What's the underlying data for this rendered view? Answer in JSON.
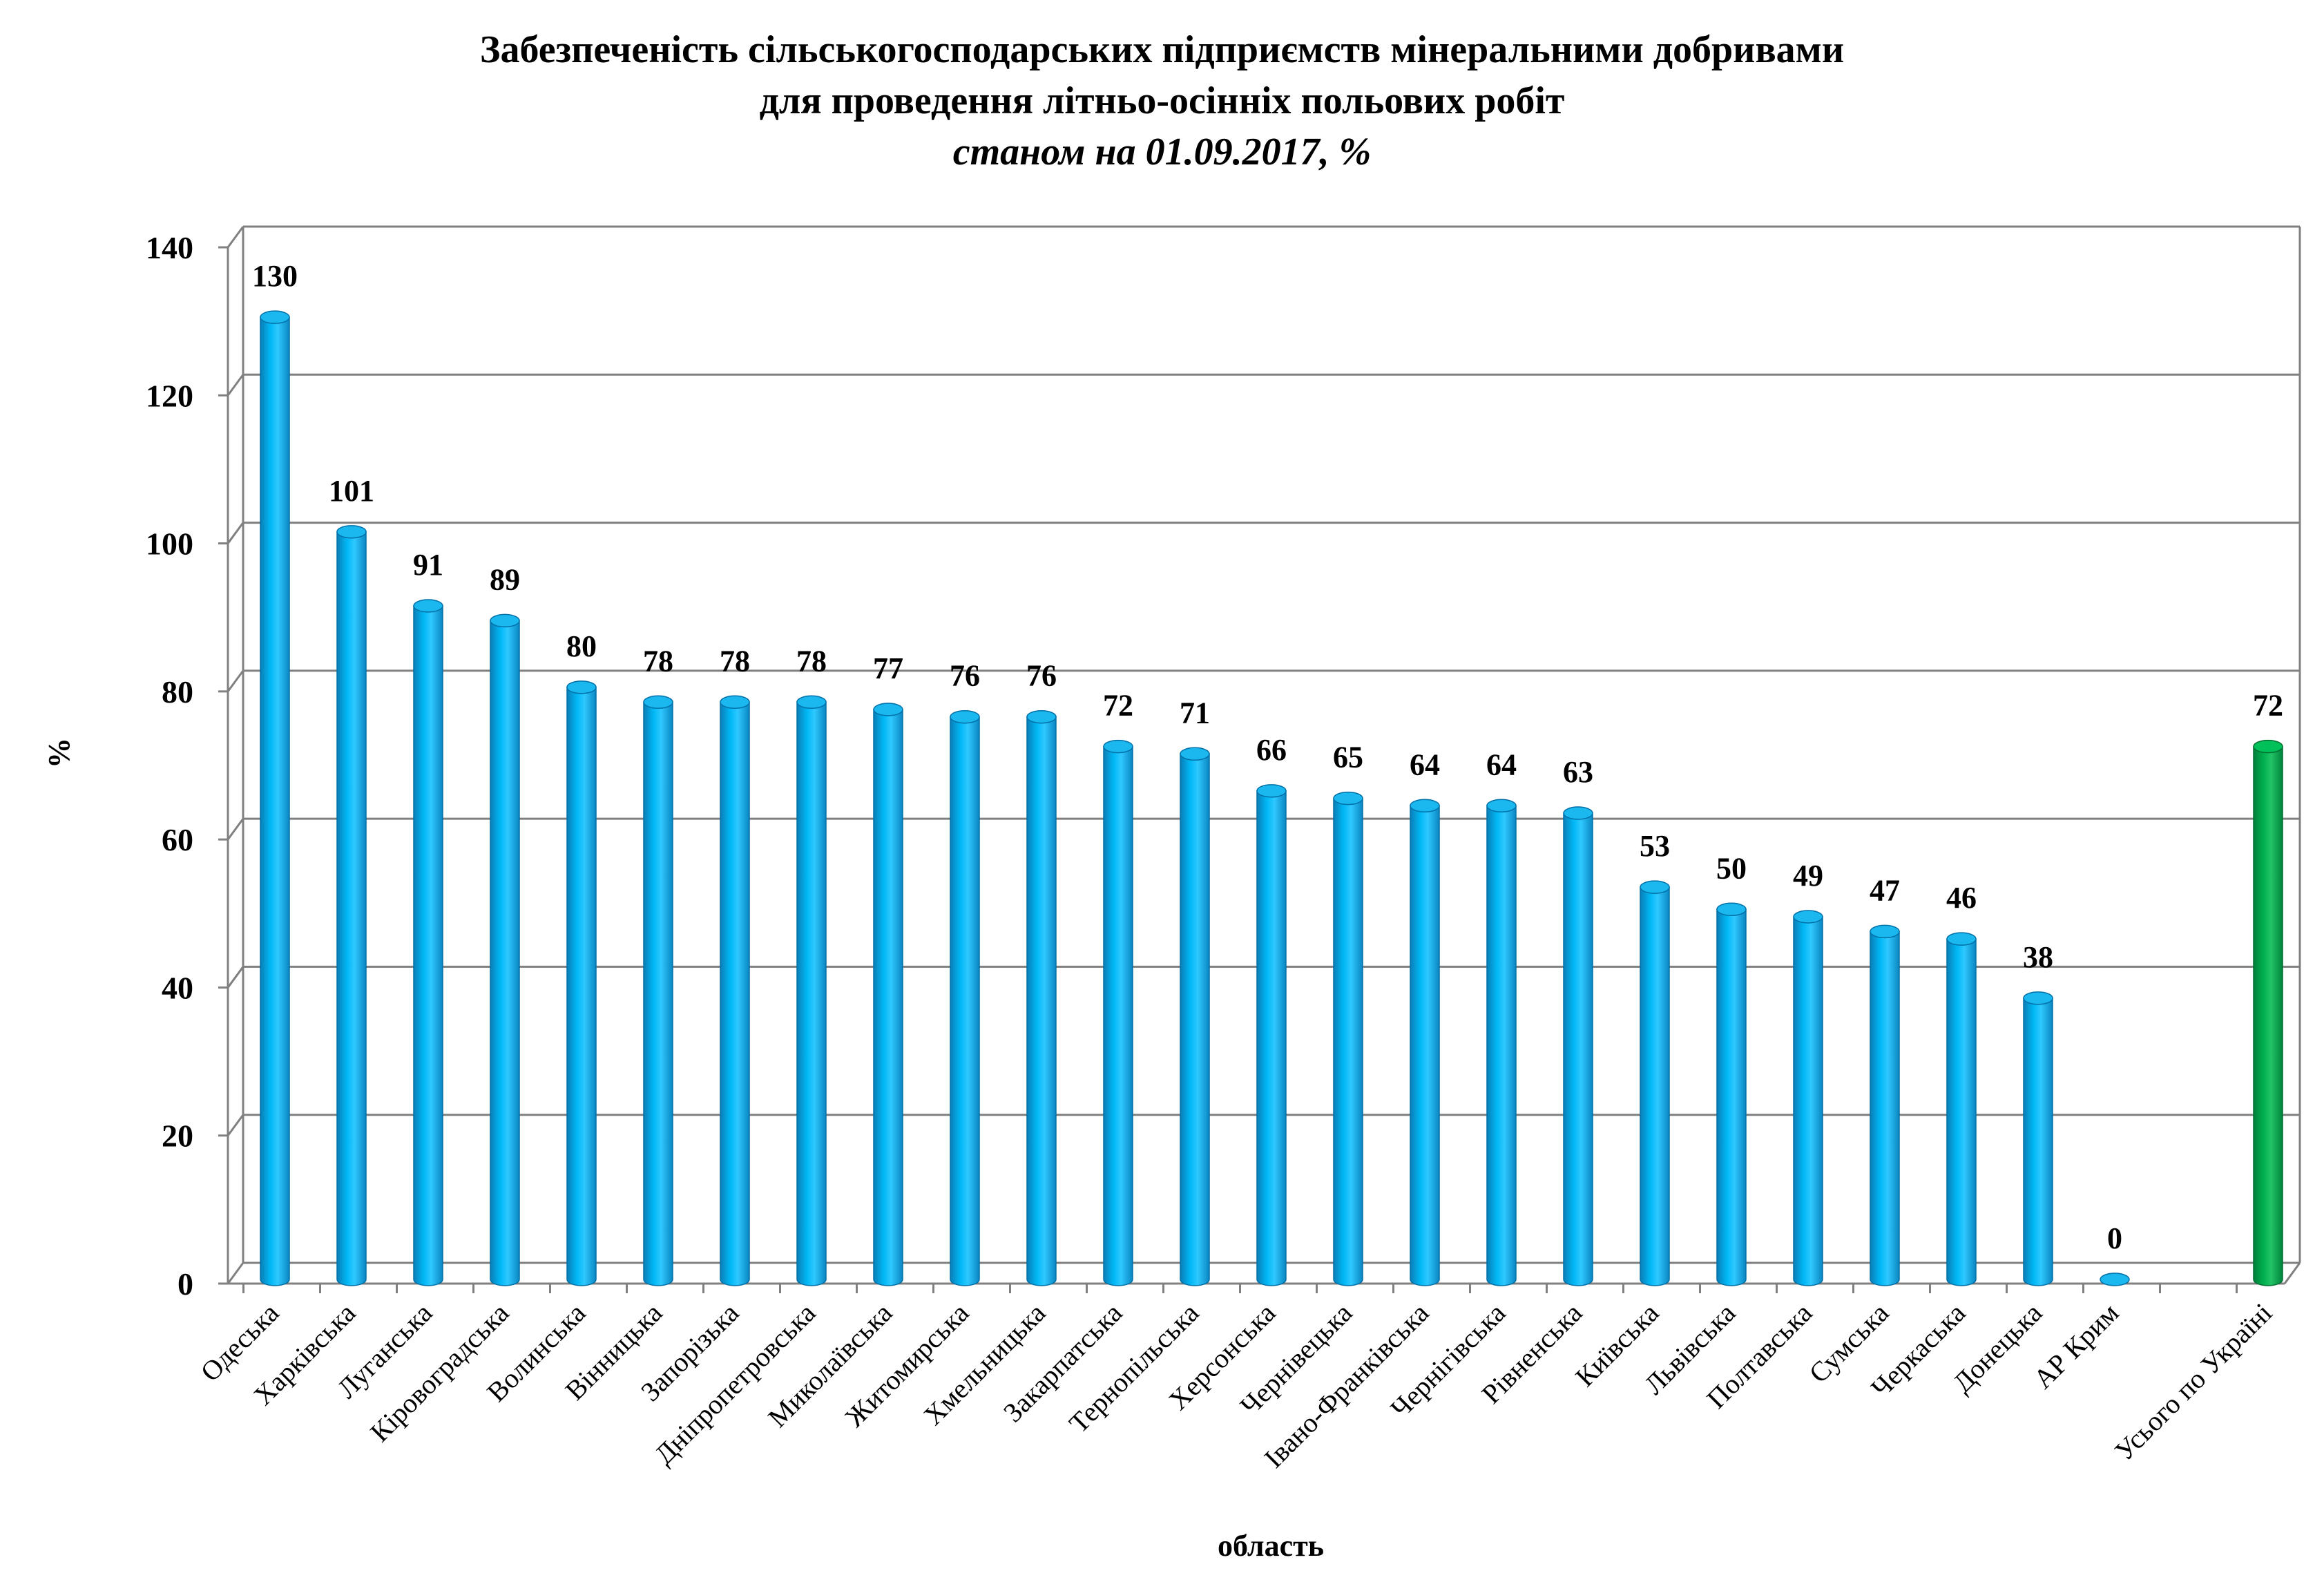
{
  "chart_data": {
    "type": "bar",
    "title": "Забезпеченість сільськогосподарських підприємств мінеральними добривами",
    "title_line2": "для проведення літньо-осінніх польових робіт",
    "subtitle": "станом на 01.09.2017, %",
    "xlabel": "область",
    "ylabel": "%",
    "ylim": [
      0,
      140
    ],
    "yticks": [
      0,
      20,
      40,
      60,
      80,
      100,
      120,
      140
    ],
    "ytick_labels": [
      "0",
      "20",
      "40",
      "60",
      "80",
      "100",
      "120",
      "140"
    ],
    "grid": true,
    "categories": [
      "Одеська",
      "Харківська",
      "Луганська",
      "Кіровоградська",
      "Волинська",
      "Вінницька",
      "Запорізька",
      "Дніпропетровська",
      "Миколаївська",
      "Житомирська",
      "Хмельницька",
      "Закарпатська",
      "Тернопільська",
      "Херсонська",
      "Чернівецька",
      "Івано-Франківська",
      "Чернігівська",
      "Рівненська",
      "Київська",
      "Львівська",
      "Полтавська",
      "Сумська",
      "Черкаська",
      "Донецька",
      "АР Крим",
      "Усього по Україні"
    ],
    "values": [
      130,
      101,
      91,
      89,
      80,
      78,
      78,
      78,
      77,
      76,
      76,
      72,
      71,
      66,
      65,
      64,
      64,
      63,
      53,
      50,
      49,
      47,
      46,
      38,
      0,
      72
    ],
    "data_labels": [
      "130",
      "101",
      "91",
      "89",
      "80",
      "78",
      "78",
      "78",
      "77",
      "76",
      "76",
      "72",
      "71",
      "66",
      "65",
      "64",
      "64",
      "63",
      "53",
      "50",
      "49",
      "47",
      "46",
      "38",
      "0",
      "72"
    ],
    "colors": {
      "region_bar": "#00b0f0",
      "region_bar_dark": "#0070a8",
      "total_bar": "#00b050",
      "total_bar_dark": "#006f30",
      "grid": "#808080"
    }
  }
}
